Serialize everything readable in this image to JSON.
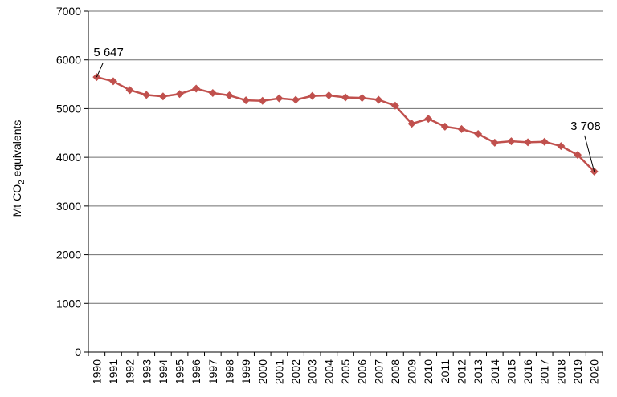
{
  "chart_data": {
    "type": "line",
    "title": "",
    "xlabel": "",
    "ylabel": {
      "prefix": "Mt CO",
      "subscript": "2",
      "suffix": " equivalents"
    },
    "ylim": [
      0,
      7000
    ],
    "yticks": [
      "0",
      "1000",
      "2000",
      "3000",
      "4000",
      "5000",
      "6000",
      "7000"
    ],
    "grid": "horizontal",
    "legend": "none",
    "categories": [
      "1990",
      "1991",
      "1992",
      "1993",
      "1994",
      "1995",
      "1996",
      "1997",
      "1998",
      "1999",
      "2000",
      "2001",
      "2002",
      "2003",
      "2004",
      "2005",
      "2006",
      "2007",
      "2008",
      "2009",
      "2010",
      "2011",
      "2012",
      "2013",
      "2014",
      "2015",
      "2016",
      "2017",
      "2018",
      "2019",
      "2020"
    ],
    "series": [
      {
        "values": [
          5647,
          5560,
          5380,
          5280,
          5250,
          5300,
          5410,
          5320,
          5270,
          5170,
          5160,
          5210,
          5180,
          5260,
          5270,
          5230,
          5220,
          5180,
          5060,
          4690,
          4790,
          4630,
          4580,
          4480,
          4300,
          4330,
          4310,
          4320,
          4230,
          4050,
          3708
        ],
        "color": "#c0504d"
      }
    ],
    "annotations": [
      {
        "category": "1990",
        "value": 5647,
        "text": "5 647"
      },
      {
        "category": "2020",
        "value": 3708,
        "text": "3 708"
      }
    ]
  }
}
